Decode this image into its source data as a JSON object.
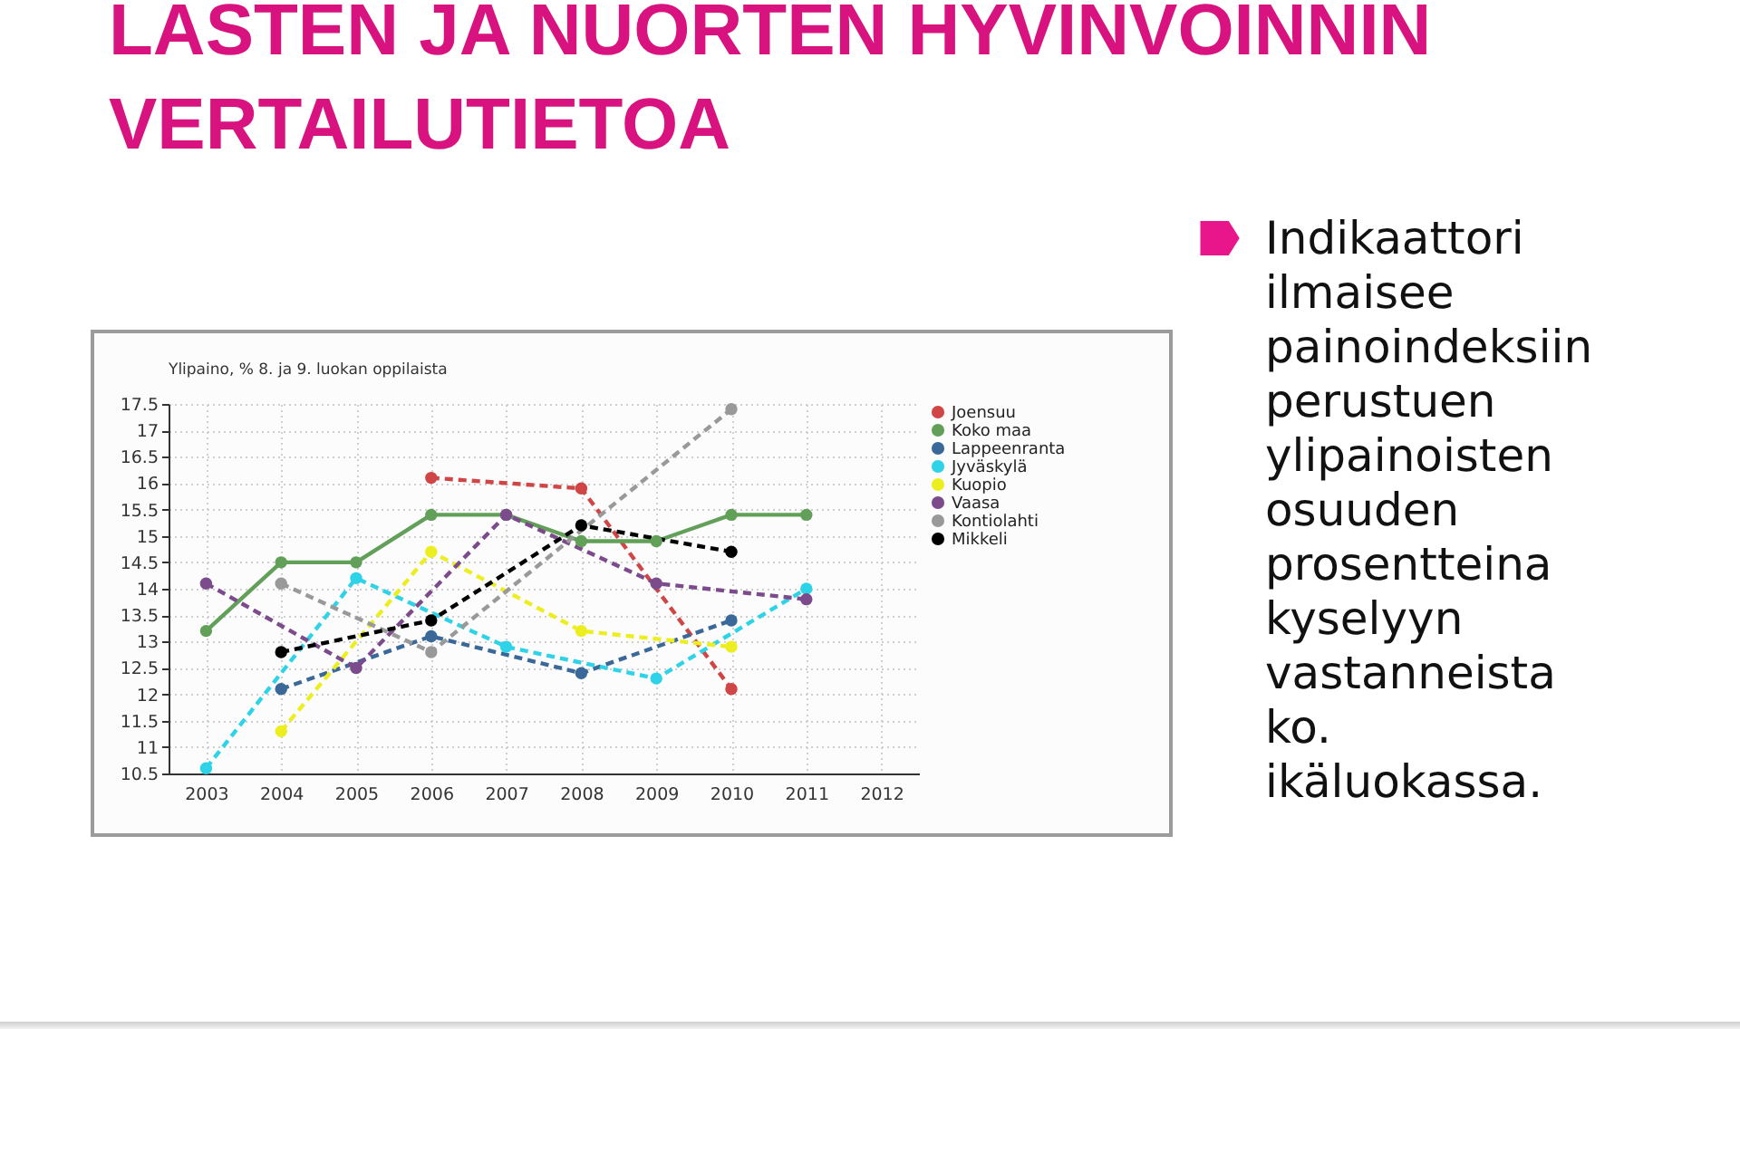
{
  "chart_data": {
    "type": "line",
    "title": "LASTEN JA NUORTEN HYVINVOINNIN VERTAILUTIETOA",
    "subtitle": "Ylipaino, % 8. ja 9. luokan oppilaista",
    "annotations": [
      "Indikaattori ilmaisee painoindeksiin perustuen ylipainoisten osuuden prosentteina kyselyyn vastanneista ko. ikäluokassa."
    ],
    "categories": [
      "2003",
      "2004",
      "2005",
      "2006",
      "2007",
      "2008",
      "2009",
      "2010",
      "2011",
      "2012"
    ],
    "ylim": [
      10.5,
      17.5
    ],
    "yticks": [
      10.5,
      11,
      11.5,
      12,
      12.5,
      13,
      13.5,
      14,
      14.5,
      15,
      15.5,
      16,
      16.5,
      17,
      17.5
    ],
    "grid": true,
    "legend": "top right",
    "marker": "circle",
    "line_style": "dashed",
    "series": [
      {
        "name": "Joensuu",
        "color": "#d04545",
        "values": [
          null,
          null,
          null,
          16.1,
          null,
          15.9,
          null,
          12.1,
          null,
          null
        ]
      },
      {
        "name": "Koko maa",
        "color": "#62a05a",
        "line_style": "solid",
        "values": [
          13.2,
          14.5,
          14.5,
          15.4,
          15.4,
          14.9,
          14.9,
          15.4,
          15.4,
          null
        ]
      },
      {
        "name": "Lappeenranta",
        "color": "#3a6898",
        "values": [
          null,
          12.1,
          null,
          13.1,
          null,
          12.4,
          null,
          13.4,
          null,
          null
        ]
      },
      {
        "name": "Jyväskylä",
        "color": "#2fd3e8",
        "values": [
          10.6,
          null,
          14.2,
          null,
          12.9,
          null,
          12.3,
          null,
          14.0,
          null
        ]
      },
      {
        "name": "Kuopio",
        "color": "#ecee20",
        "values": [
          null,
          11.3,
          null,
          14.7,
          null,
          13.2,
          null,
          12.9,
          null,
          null
        ]
      },
      {
        "name": "Vaasa",
        "color": "#7b4b8b",
        "values": [
          14.1,
          null,
          12.5,
          null,
          15.4,
          null,
          14.1,
          null,
          13.8,
          null
        ]
      },
      {
        "name": "Kontiolahti",
        "color": "#999999",
        "values": [
          null,
          14.1,
          null,
          12.8,
          null,
          null,
          null,
          17.4,
          null,
          null
        ]
      },
      {
        "name": "Mikkeli",
        "color": "#000000",
        "values": [
          null,
          12.8,
          null,
          13.4,
          null,
          15.2,
          null,
          14.7,
          null,
          null
        ]
      }
    ]
  }
}
